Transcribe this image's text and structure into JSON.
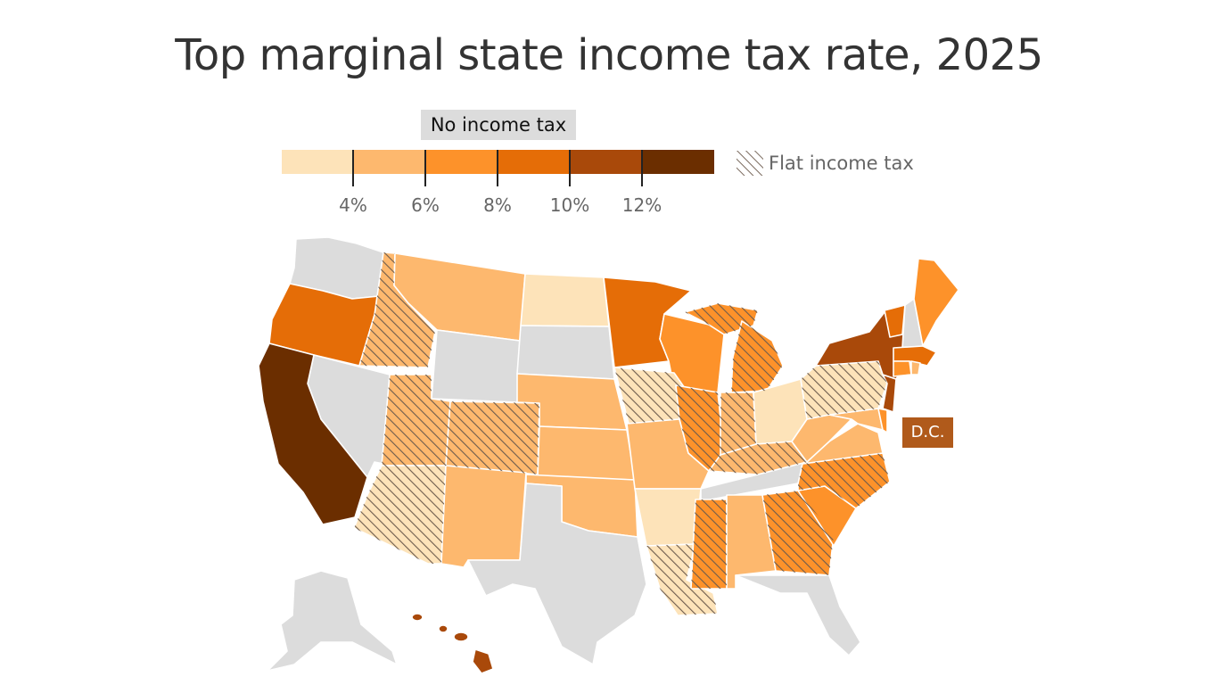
{
  "title": "Top marginal state income tax rate, 2025",
  "legend": {
    "no_tax_label": "No income tax",
    "no_tax_color": "#dcdcdc",
    "flat_tax_label": "Flat income tax",
    "bins": [
      {
        "color": "#fde3b9"
      },
      {
        "color": "#fdb86e"
      },
      {
        "color": "#fd922a"
      },
      {
        "color": "#e56d07"
      },
      {
        "color": "#a9490a"
      },
      {
        "color": "#6b2e00"
      }
    ],
    "ticks": [
      "4%",
      "6%",
      "8%",
      "10%",
      "12%"
    ]
  },
  "dc_label": "D.C.",
  "icons": {
    "flat_tax_swatch": "hatch-pattern-icon"
  }
}
